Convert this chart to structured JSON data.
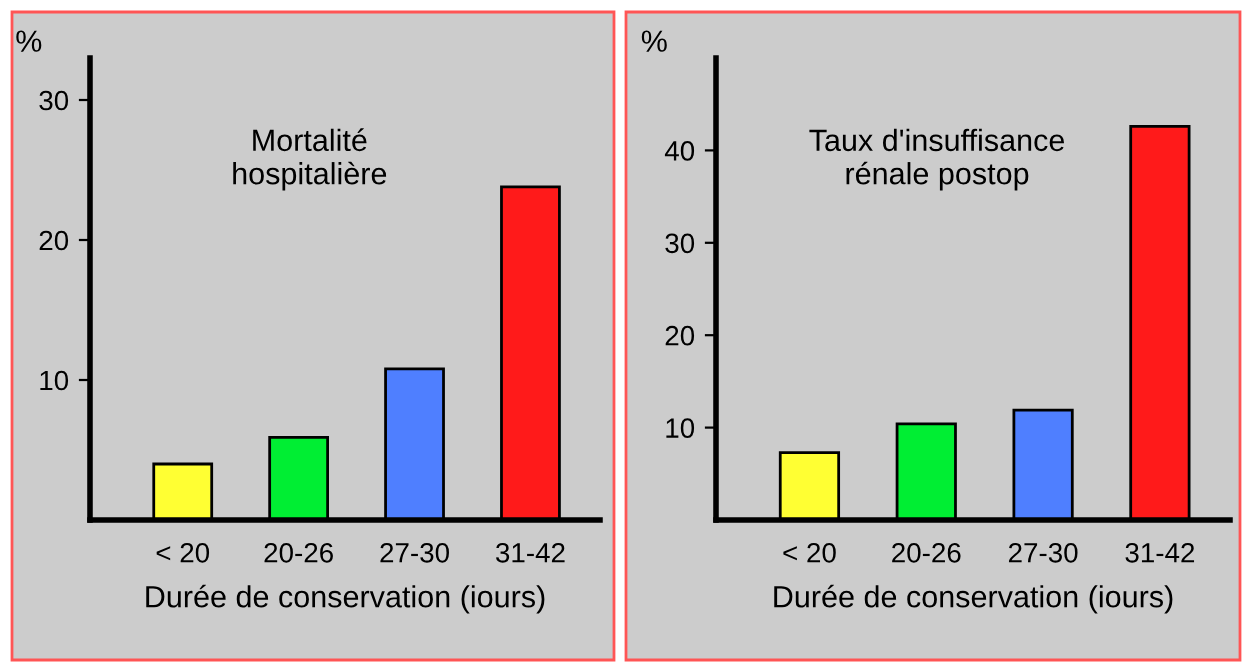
{
  "chart_data": [
    {
      "type": "bar",
      "title": "Mortalité\nhospitalière",
      "xlabel": "Durée de conservation (iours)",
      "ylabel": "%",
      "categories": [
        "< 20",
        "20-26",
        "27-30",
        "31-42"
      ],
      "values": [
        4,
        5.9,
        10.8,
        23.8
      ],
      "colors": [
        "#ffff33",
        "#00ee33",
        "#4f7fff",
        "#ff1a1a"
      ],
      "ylim": [
        0,
        33
      ],
      "yticks": [
        10,
        20,
        30
      ],
      "grid": false,
      "legend": false
    },
    {
      "type": "bar",
      "title": "Taux d'insuffisance\nrénale postop",
      "xlabel": "Durée de conservation (iours)",
      "ylabel": "%",
      "categories": [
        "< 20",
        "20-26",
        "27-30",
        "31-42"
      ],
      "values": [
        7.3,
        10.4,
        11.9,
        42.6
      ],
      "colors": [
        "#ffff33",
        "#00ee33",
        "#4f7fff",
        "#ff1a1a"
      ],
      "ylim": [
        0,
        50
      ],
      "yticks": [
        10,
        20,
        30,
        40
      ],
      "grid": false,
      "legend": false
    }
  ]
}
